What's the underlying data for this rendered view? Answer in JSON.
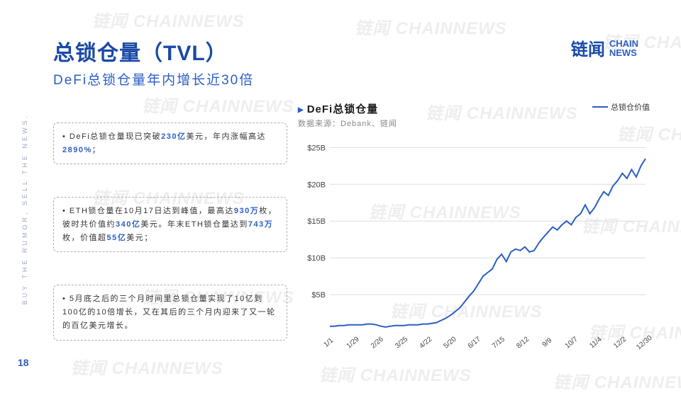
{
  "logo": {
    "cn": "链闻",
    "en_top": "CHAIN",
    "en_bot": "NEWS"
  },
  "title": "总锁仓量（TVL）",
  "subtitle": "DeFi总锁仓量年内增长近30倍",
  "side_tag": "BUY THE RUMOR, SELL THE NEWS.",
  "page_number": "18",
  "bullets": [
    {
      "html": "DeFi总锁仓量现已突破<span class='hl'>230亿</span>美元，年内涨幅高达<span class='hl'>2890%</span>；"
    },
    {
      "html": "ETH锁仓量在10月17日达到峰值，最高达<span class='hl'>930万</span>枚，彼时共价值约<span class='hl'>340亿</span>美元。年末ETH锁仓量达到<span class='hl'>743万</span>枚，价值超<span class='hl'>55亿</span>美元；"
    },
    {
      "html": "5月底之后的三个月时间里总锁仓量实现了10亿到100亿的10倍增长，又在其后的三个月内迎来了又一轮的百亿美元增长。"
    }
  ],
  "chart": {
    "title": "DeFi总锁仓量",
    "source": "数据来源：Debank、链闻",
    "legend_label": "总锁仓价值",
    "line_color": "#2a5ec6",
    "grid_color": "#dddddd",
    "background": "#ffffff",
    "y_ticks": [
      {
        "v": 5,
        "label": "$5B"
      },
      {
        "v": 10,
        "label": "$10B"
      },
      {
        "v": 15,
        "label": "$15B"
      },
      {
        "v": 20,
        "label": "$20B"
      },
      {
        "v": 25,
        "label": "$25B"
      }
    ],
    "y_min": 0,
    "y_max": 26,
    "x_labels": [
      "1/1",
      "1/29",
      "2/26",
      "3/25",
      "4/22",
      "5/20",
      "6/17",
      "7/15",
      "8/12",
      "9/9",
      "10/7",
      "11/4",
      "12/2",
      "12/30"
    ],
    "series": [
      0.7,
      0.7,
      0.8,
      0.8,
      0.9,
      0.9,
      0.9,
      0.9,
      1.0,
      1.0,
      0.9,
      0.7,
      0.6,
      0.7,
      0.8,
      0.8,
      0.8,
      0.9,
      0.9,
      0.9,
      1.0,
      1.0,
      1.1,
      1.2,
      1.5,
      1.8,
      2.2,
      2.7,
      3.2,
      4.0,
      4.8,
      5.5,
      6.5,
      7.5,
      8.0,
      8.5,
      9.8,
      10.5,
      9.5,
      10.8,
      11.2,
      11.0,
      11.5,
      10.8,
      11.0,
      12.0,
      12.8,
      13.5,
      14.2,
      13.8,
      14.5,
      15.0,
      14.5,
      15.5,
      16.0,
      17.2,
      16.0,
      16.8,
      18.0,
      19.0,
      18.5,
      19.8,
      20.5,
      21.5,
      20.8,
      22.0,
      21.0,
      22.5,
      23.5
    ]
  },
  "watermarks_text": "链闻 CHAINNEWS"
}
